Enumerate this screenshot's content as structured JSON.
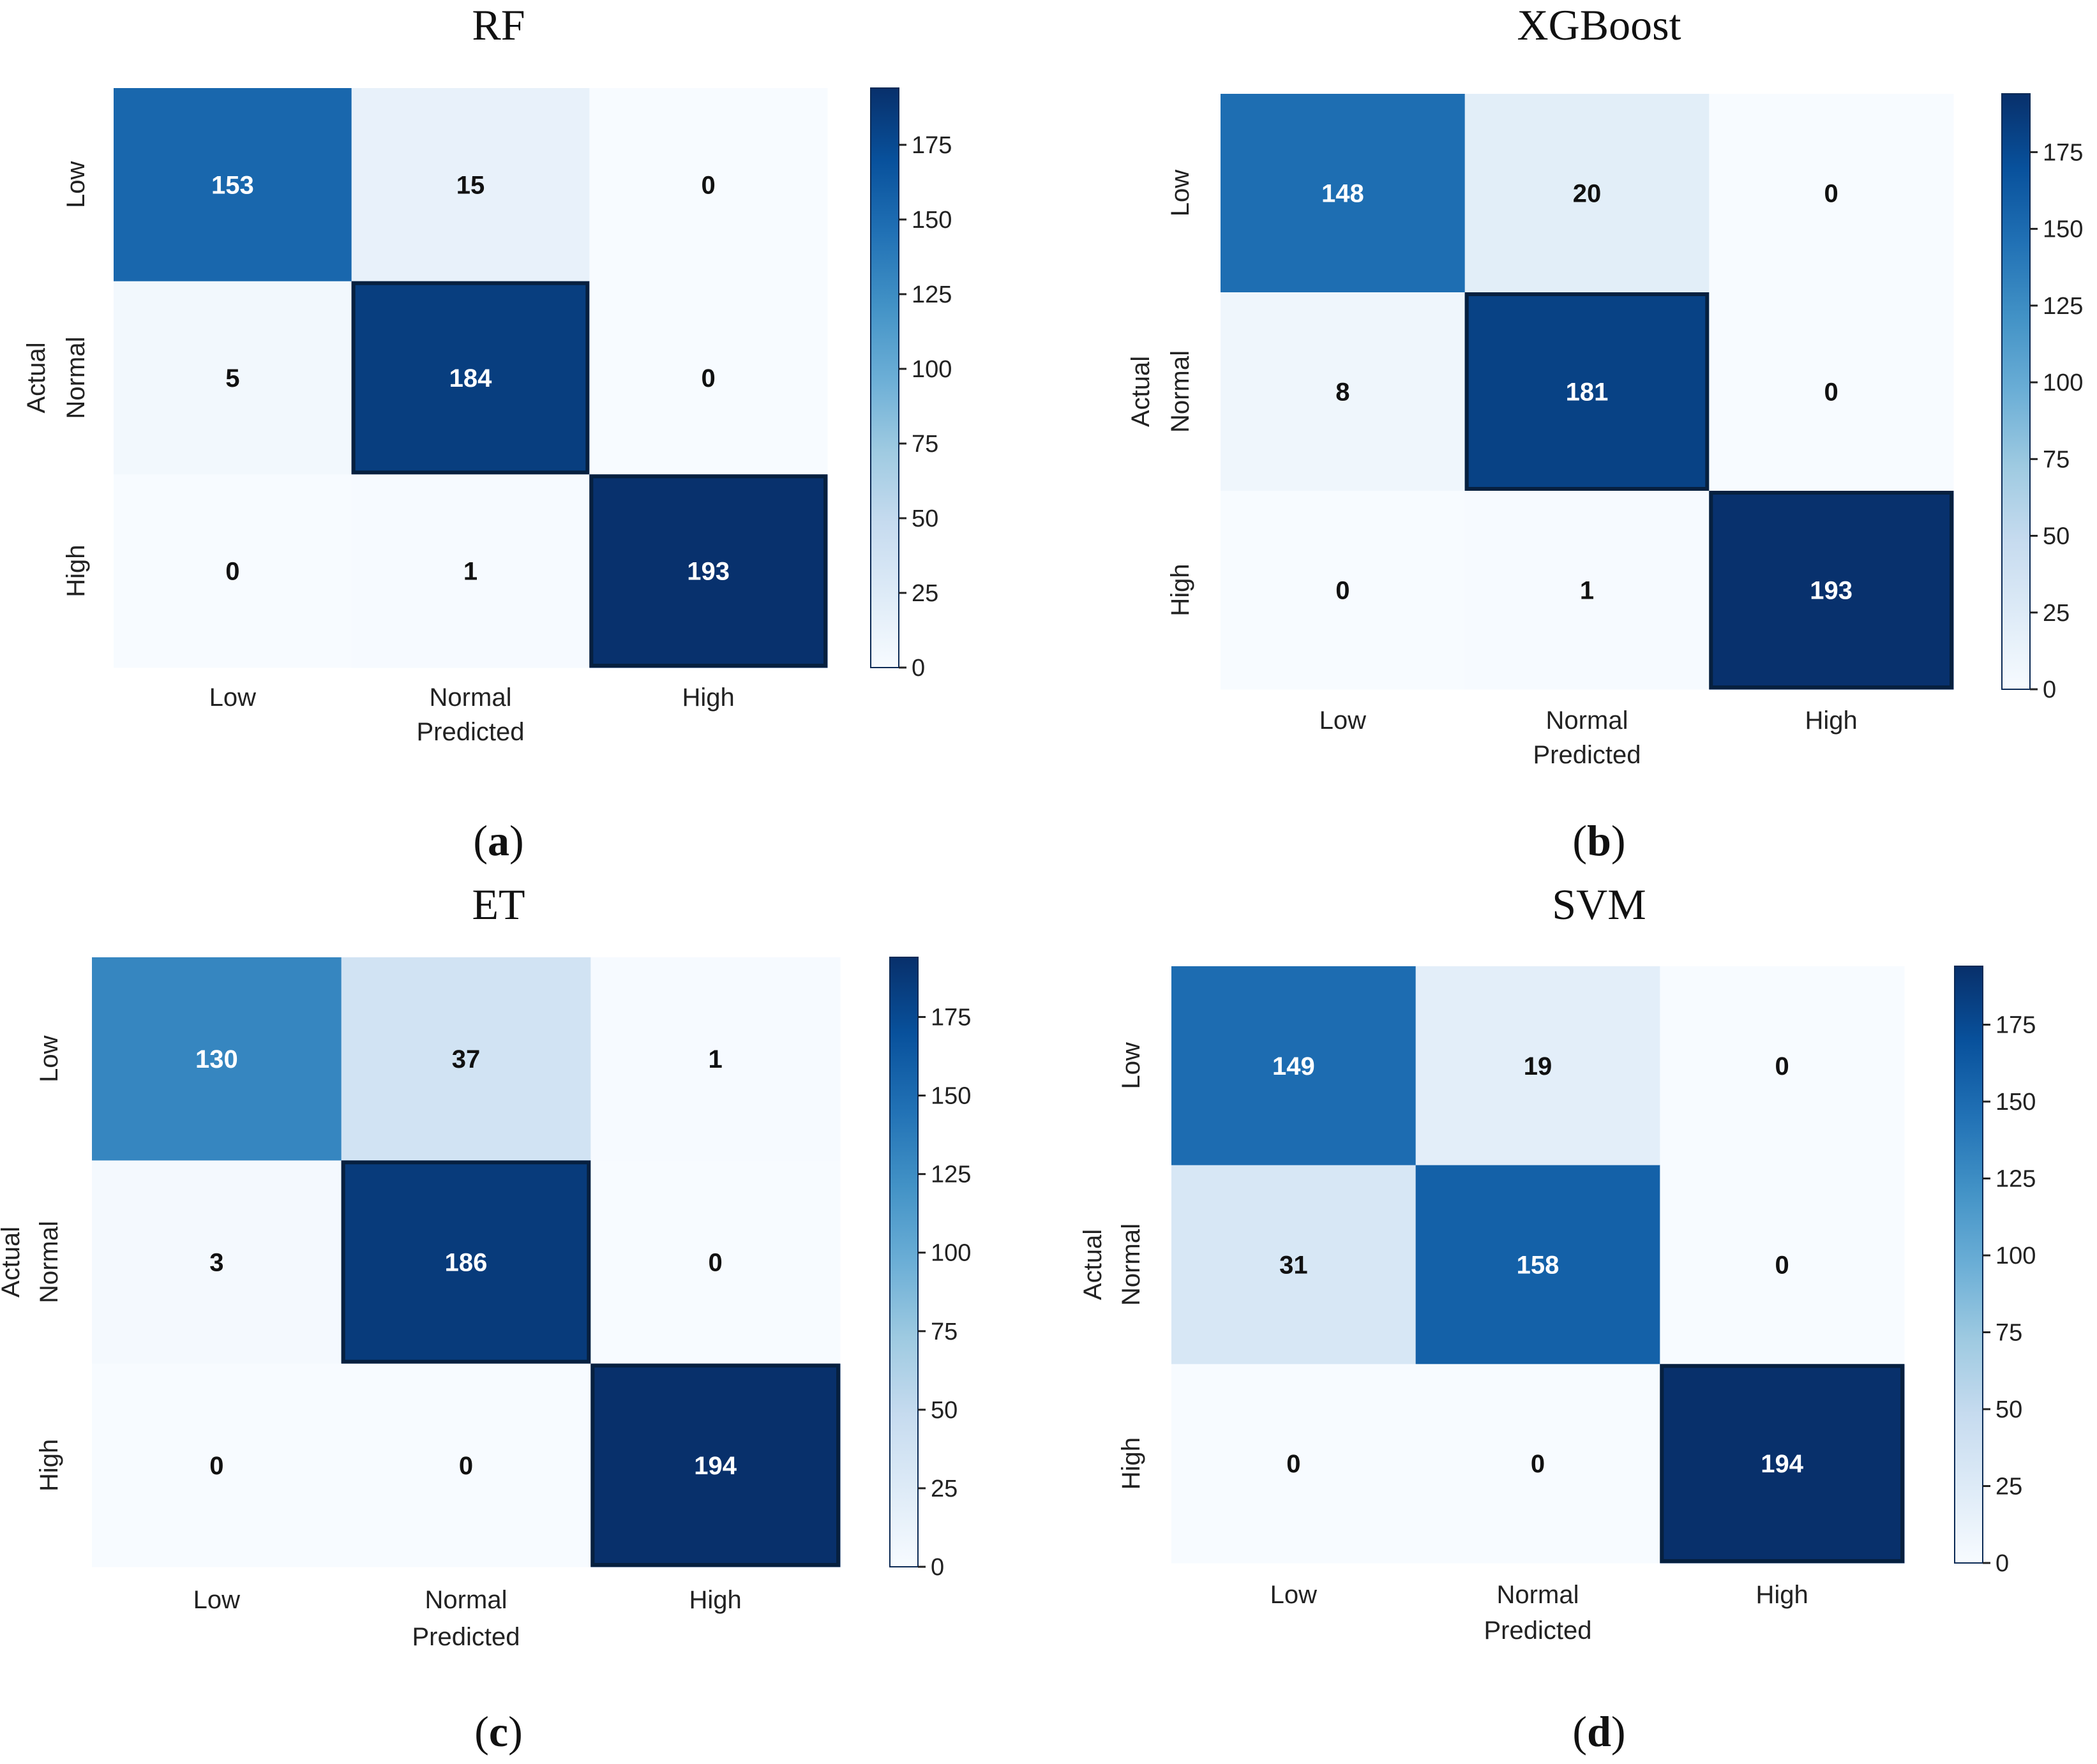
{
  "chart_data": [
    {
      "type": "heatmap",
      "title": "RF",
      "caption": {
        "open": "(",
        "letter": "a",
        "close": ")"
      },
      "xlabel": "Predicted",
      "ylabel": "Actual",
      "x_categories": [
        "Low",
        "Normal",
        "High"
      ],
      "y_categories": [
        "Low",
        "Normal",
        "High"
      ],
      "matrix": [
        [
          153,
          15,
          0
        ],
        [
          5,
          184,
          0
        ],
        [
          0,
          1,
          193
        ]
      ],
      "colorbar": {
        "min": 0,
        "max": 194,
        "ticks": [
          0,
          25,
          50,
          75,
          100,
          125,
          150,
          175
        ],
        "colormap": "Blues"
      }
    },
    {
      "type": "heatmap",
      "title": "XGBoost",
      "caption": {
        "open": "(",
        "letter": "b",
        "close": ")"
      },
      "xlabel": "Predicted",
      "ylabel": "Actual",
      "x_categories": [
        "Low",
        "Normal",
        "High"
      ],
      "y_categories": [
        "Low",
        "Normal",
        "High"
      ],
      "matrix": [
        [
          148,
          20,
          0
        ],
        [
          8,
          181,
          0
        ],
        [
          0,
          1,
          193
        ]
      ],
      "colorbar": {
        "min": 0,
        "max": 194,
        "ticks": [
          0,
          25,
          50,
          75,
          100,
          125,
          150,
          175
        ],
        "colormap": "Blues"
      }
    },
    {
      "type": "heatmap",
      "title": "ET",
      "caption": {
        "open": "(",
        "letter": "c",
        "close": ")"
      },
      "xlabel": "Predicted",
      "ylabel": "Actual",
      "x_categories": [
        "Low",
        "Normal",
        "High"
      ],
      "y_categories": [
        "Low",
        "Normal",
        "High"
      ],
      "matrix": [
        [
          130,
          37,
          1
        ],
        [
          3,
          186,
          0
        ],
        [
          0,
          0,
          194
        ]
      ],
      "colorbar": {
        "min": 0,
        "max": 194,
        "ticks": [
          0,
          25,
          50,
          75,
          100,
          125,
          150,
          175
        ],
        "colormap": "Blues"
      }
    },
    {
      "type": "heatmap",
      "title": "SVM",
      "caption": {
        "open": "(",
        "letter": "d",
        "close": ")"
      },
      "xlabel": "Predicted",
      "ylabel": "Actual",
      "x_categories": [
        "Low",
        "Normal",
        "High"
      ],
      "y_categories": [
        "Low",
        "Normal",
        "High"
      ],
      "matrix": [
        [
          149,
          19,
          0
        ],
        [
          31,
          158,
          0
        ],
        [
          0,
          0,
          194
        ]
      ],
      "colorbar": {
        "min": 0,
        "max": 194,
        "ticks": [
          0,
          25,
          50,
          75,
          100,
          125,
          150,
          175
        ],
        "colormap": "Blues"
      }
    }
  ]
}
